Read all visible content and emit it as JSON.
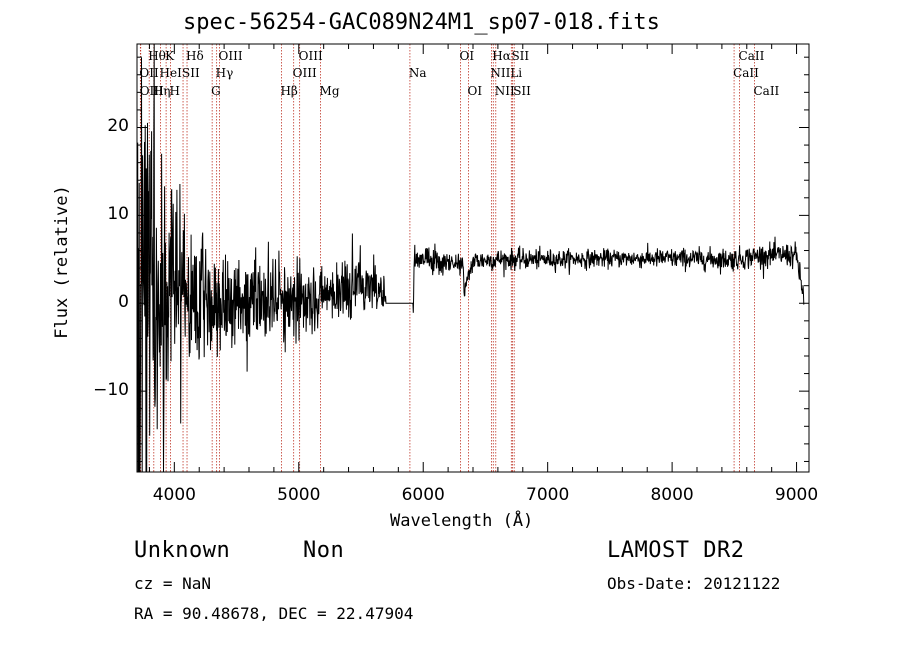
{
  "chart_data": {
    "type": "line",
    "title": "spec-56254-GAC089N24M1_sp07-018.fits",
    "xlabel": "Wavelength (Å)",
    "ylabel": "Flux (relative)",
    "xlim": [
      3700,
      9100
    ],
    "ylim": [
      -19.2,
      29.5
    ],
    "xticks": [
      4000,
      5000,
      6000,
      7000,
      8000,
      9000
    ],
    "xtick_labels": [
      "4000",
      "5000",
      "6000",
      "7000",
      "8000",
      "9000"
    ],
    "yticks": [
      -10,
      0,
      10,
      20
    ],
    "ytick_labels": [
      "−10",
      "0",
      "10",
      "20"
    ],
    "grid": false,
    "series": [
      {
        "name": "flux",
        "anchors_x": [
          3700,
          3720,
          3760,
          3800,
          3850,
          3900,
          3950,
          4000,
          4100,
          4200,
          4300,
          4400,
          4600,
          4800,
          5000,
          5200,
          5400,
          5600,
          5680,
          5700,
          5920,
          5930,
          6000,
          6200,
          6320,
          6330,
          6400,
          6600,
          7000,
          7500,
          8000,
          8500,
          8700,
          8900,
          9000,
          9040,
          9060
        ],
        "anchors_y": [
          0,
          2,
          6,
          4,
          3,
          3,
          2.5,
          1.5,
          1,
          0.8,
          0.4,
          0.3,
          0.5,
          0.3,
          0.6,
          1.0,
          1.5,
          2.5,
          1.0,
          0.0,
          0.0,
          5.2,
          5.0,
          4.5,
          4.5,
          1.5,
          4.8,
          5.0,
          5.0,
          5.1,
          5.1,
          5.0,
          5.4,
          5.5,
          5.4,
          2.0,
          0.5
        ],
        "noise_x": [
          3700,
          3800,
          3900,
          4000,
          4100,
          4300,
          4600,
          5000,
          5500,
          5680,
          5930,
          6500,
          7500,
          9060
        ],
        "noise_y": [
          14,
          12,
          9,
          6,
          4,
          3,
          2.6,
          2.0,
          1.6,
          1.4,
          0.8,
          0.6,
          0.5,
          0.7
        ],
        "gap": [
          5700,
          5920
        ]
      }
    ],
    "annotations": [
      {
        "label": "Hθ",
        "x": 3798,
        "row": 1
      },
      {
        "label": "OII",
        "x": 3727,
        "row": 2
      },
      {
        "label": "OIII",
        "x": 3730,
        "row": 3
      },
      {
        "label": "K",
        "x": 3934,
        "row": 1
      },
      {
        "label": "HeI",
        "x": 3889,
        "row": 2
      },
      {
        "label": "Hη",
        "x": 3835,
        "row": 3
      },
      {
        "label": "SII",
        "x": 4070,
        "row": 2
      },
      {
        "label": "H",
        "x": 3969,
        "row": 3
      },
      {
        "label": "Hδ",
        "x": 4102,
        "row": 1
      },
      {
        "label": "OIII",
        "x": 4363,
        "row": 1
      },
      {
        "label": "Hγ",
        "x": 4340,
        "row": 2
      },
      {
        "label": "G",
        "x": 4304,
        "row": 3
      },
      {
        "label": "OIII",
        "x": 5007,
        "row": 1
      },
      {
        "label": "OIII",
        "x": 4959,
        "row": 2
      },
      {
        "label": "Hβ",
        "x": 4861,
        "row": 3
      },
      {
        "label": "Mg",
        "x": 5175,
        "row": 3
      },
      {
        "label": "Na",
        "x": 5893,
        "row": 2
      },
      {
        "label": "OI",
        "x": 6300,
        "row": 1
      },
      {
        "label": "OI",
        "x": 6364,
        "row": 3
      },
      {
        "label": "Hα",
        "x": 6563,
        "row": 1
      },
      {
        "label": "SII",
        "x": 6717,
        "row": 1
      },
      {
        "label": "NII",
        "x": 6548,
        "row": 2
      },
      {
        "label": "Li",
        "x": 6708,
        "row": 2
      },
      {
        "label": "NII",
        "x": 6583,
        "row": 3
      },
      {
        "label": "SII",
        "x": 6731,
        "row": 3
      },
      {
        "label": "CaII",
        "x": 8542,
        "row": 1
      },
      {
        "label": "CaII",
        "x": 8498,
        "row": 2
      },
      {
        "label": "CaII",
        "x": 8662,
        "row": 3
      }
    ]
  },
  "footer": {
    "classification": "Unknown",
    "subclass": "Non",
    "survey": "LAMOST DR2",
    "cz": "cz = NaN",
    "obs_date": "Obs-Date: 20121122",
    "coords": "RA =  90.48678, DEC =  22.47904"
  },
  "colors": {
    "spectrum": "#000000",
    "line_markers": "#c0392b",
    "axes": "#000000",
    "background": "#ffffff"
  }
}
